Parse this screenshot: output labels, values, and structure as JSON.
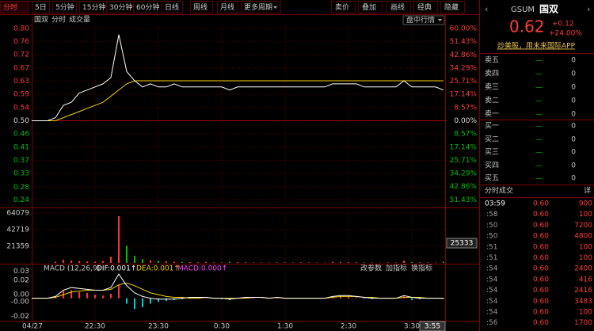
{
  "toolbar": {
    "tabs": [
      "分时",
      "5日",
      "5分钟",
      "15分钟",
      "30分钟",
      "60分钟",
      "日线",
      "周线",
      "月线",
      "更多周期"
    ],
    "tools": [
      "卖价",
      "叠加",
      "画线",
      "经典",
      "隐藏"
    ]
  },
  "stock": {
    "code": "GSUM",
    "name": "国双",
    "price": "0.62",
    "change": "+0.12",
    "change_pct": "+24.00%"
  },
  "promo": "炒美股，用未来国际APP",
  "order_book": {
    "asks": [
      {
        "label": "卖五",
        "price": "—",
        "volume": "0"
      },
      {
        "label": "卖四",
        "price": "—",
        "volume": "0"
      },
      {
        "label": "卖三",
        "price": "—",
        "volume": "0"
      },
      {
        "label": "卖二",
        "price": "—",
        "volume": "0"
      },
      {
        "label": "卖一",
        "price": "—",
        "volume": "0"
      }
    ],
    "bids": [
      {
        "label": "买一",
        "price": "—",
        "volume": "0"
      },
      {
        "label": "买二",
        "price": "—",
        "volume": "0"
      },
      {
        "label": "买三",
        "price": "—",
        "volume": "0"
      },
      {
        "label": "买四",
        "price": "—",
        "volume": "0"
      },
      {
        "label": "买五",
        "price": "—",
        "volume": "0"
      }
    ]
  },
  "trades": {
    "title": "分时成交",
    "detail": "详",
    "rows": [
      {
        "time": "03:59",
        "price": "0.60",
        "volume": "900"
      },
      {
        "time": ":58",
        "price": "0.60",
        "volume": "100"
      },
      {
        "time": ":50",
        "price": "0.60",
        "volume": "7200"
      },
      {
        "time": ":50",
        "price": "0.60",
        "volume": "4800"
      },
      {
        "time": ":51",
        "price": "0.60",
        "volume": "100"
      },
      {
        "time": ":51",
        "price": "0.60",
        "volume": "100"
      },
      {
        "time": ":54",
        "price": "0.60",
        "volume": "2400"
      },
      {
        "time": ":54",
        "price": "0.60",
        "volume": "416"
      },
      {
        "time": ":54",
        "price": "0.60",
        "volume": "2416"
      },
      {
        "time": ":54",
        "price": "0.60",
        "volume": "3483"
      },
      {
        "time": ":54",
        "price": "0.60",
        "volume": "100"
      },
      {
        "time": ":56",
        "price": "0.60",
        "volume": "1700"
      }
    ]
  },
  "chart_data": {
    "type": "line",
    "legend": [
      "国双",
      "分时",
      "成交量"
    ],
    "dropdown": "盘中行情",
    "cursor_time": "3:55",
    "xlim": [
      0,
      52
    ],
    "xticks": [
      {
        "value": 0,
        "label": "04/27"
      },
      {
        "value": 8,
        "label": "22:30"
      },
      {
        "value": 16,
        "label": "23:30"
      },
      {
        "value": 24,
        "label": "0:30"
      },
      {
        "value": 32,
        "label": "1:30"
      },
      {
        "value": 40,
        "label": "2:30"
      },
      {
        "value": 48,
        "label": "3:30"
      }
    ],
    "ylim": [
      0.2,
      0.8
    ],
    "yticks": [
      {
        "value": 0.8,
        "label": "0.80"
      },
      {
        "value": 0.7571,
        "label": "0.76"
      },
      {
        "value": 0.715,
        "label": "0.72"
      },
      {
        "value": 0.6714,
        "label": "0.67"
      },
      {
        "value": 0.6286,
        "label": "0.63"
      },
      {
        "value": 0.5857,
        "label": "0.59"
      },
      {
        "value": 0.5429,
        "label": "0.54"
      },
      {
        "value": 0.5,
        "label": "0.50"
      },
      {
        "value": 0.4571,
        "label": "0.46"
      },
      {
        "value": 0.4143,
        "label": "0.41"
      },
      {
        "value": 0.3714,
        "label": "0.37"
      },
      {
        "value": 0.3286,
        "label": "0.33"
      },
      {
        "value": 0.284,
        "label": "0.28"
      },
      {
        "value": 0.2429,
        "label": "0.24"
      }
    ],
    "y2lim": [
      -60,
      60
    ],
    "y2ticks": [
      {
        "value": 60,
        "label": "60.00%"
      },
      {
        "value": 51.43,
        "label": "51.43%"
      },
      {
        "value": 42.86,
        "label": "42.86%"
      },
      {
        "value": 34.29,
        "label": "34.29%"
      },
      {
        "value": 25.71,
        "label": "25.71%"
      },
      {
        "value": 17.14,
        "label": "17.14%"
      },
      {
        "value": 8.57,
        "label": "8.57%"
      },
      {
        "value": 0,
        "label": "0.00%"
      },
      {
        "value": -8.57,
        "label": "8.57%"
      },
      {
        "value": -17.14,
        "label": "17.14%"
      },
      {
        "value": -25.71,
        "label": "25.71%"
      },
      {
        "value": -34.29,
        "label": "34.29%"
      },
      {
        "value": -42.86,
        "label": "42.86%"
      },
      {
        "value": -51.43,
        "label": "51.43%"
      }
    ],
    "grid": true,
    "price": {
      "color": "#ffffff",
      "values": [
        0.5,
        0.5,
        0.5,
        0.51,
        0.55,
        0.56,
        0.59,
        0.6,
        0.61,
        0.62,
        0.64,
        0.78,
        0.66,
        0.63,
        0.61,
        0.62,
        0.61,
        0.61,
        0.62,
        0.61,
        0.61,
        0.61,
        0.61,
        0.61,
        0.61,
        0.6,
        0.61,
        0.61,
        0.61,
        0.61,
        0.61,
        0.61,
        0.61,
        0.61,
        0.61,
        0.61,
        0.61,
        0.61,
        0.62,
        0.62,
        0.62,
        0.62,
        0.61,
        0.61,
        0.61,
        0.61,
        0.61,
        0.63,
        0.61,
        0.61,
        0.61,
        0.61,
        0.6
      ]
    },
    "avg": {
      "color": "#f0d000",
      "values": [
        0.5,
        0.5,
        0.5,
        0.5,
        0.51,
        0.52,
        0.53,
        0.54,
        0.55,
        0.56,
        0.58,
        0.6,
        0.62,
        0.63,
        0.63,
        0.63,
        0.63,
        0.63,
        0.63,
        0.63,
        0.63,
        0.63,
        0.63,
        0.63,
        0.63,
        0.63,
        0.63,
        0.63,
        0.63,
        0.63,
        0.63,
        0.63,
        0.63,
        0.63,
        0.63,
        0.63,
        0.63,
        0.63,
        0.63,
        0.63,
        0.63,
        0.63,
        0.63,
        0.63,
        0.63,
        0.63,
        0.63,
        0.63,
        0.63,
        0.63,
        0.63,
        0.63,
        0.63
      ]
    },
    "volume": {
      "ylim": [
        0,
        69000
      ],
      "yticks": [
        64079,
        42719,
        21359
      ],
      "marker": 25333,
      "up_color": "#ff3232",
      "down_color": "#00c000",
      "values": [
        200,
        100,
        100,
        1500,
        4000,
        3000,
        2500,
        1800,
        1500,
        2500,
        8000,
        60000,
        22000,
        9000,
        5000,
        3500,
        2500,
        2000,
        1500,
        1200,
        1000,
        800,
        1200,
        700,
        600,
        1500,
        900,
        800,
        700,
        600,
        500,
        700,
        600,
        500,
        800,
        600,
        500,
        400,
        1500,
        1200,
        1000,
        800,
        600,
        500,
        400,
        600,
        500,
        3000,
        1200,
        800,
        600,
        500,
        1500
      ]
    },
    "macd": {
      "title": "MACD (12,26,9)",
      "dif_label": "DIF:0.001↑",
      "dea_label": "DEA:0.001↑",
      "macd_label": "MACD:0.000↑",
      "buttons": [
        "改参数",
        "加指标",
        "换指标"
      ],
      "ylim": [
        -0.025,
        0.035
      ],
      "yticks": [
        0.03,
        0.02,
        {
          "value": 0.004,
          "label": "0.00"
        },
        {
          "value": -0.004,
          "label": "-0.00"
        },
        -0.02
      ],
      "dif": [
        0,
        0,
        0,
        0.002,
        0.009,
        0.012,
        0.011,
        0.01,
        0.009,
        0.009,
        0.012,
        0.027,
        0.014,
        0.006,
        0.002,
        0.0,
        -0.001,
        -0.001,
        -0.001,
        0,
        0.001,
        0.001,
        0.001,
        0,
        0,
        -0.001,
        0,
        0.001,
        0.001,
        0.001,
        0,
        0.001,
        0,
        0,
        0,
        0,
        0,
        0,
        0.002,
        0.003,
        0.003,
        0.002,
        0.001,
        0,
        0,
        0,
        0,
        0.003,
        0.001,
        0,
        0,
        0,
        0
      ],
      "dea": [
        0,
        0,
        0,
        0.001,
        0.004,
        0.007,
        0.008,
        0.009,
        0.009,
        0.009,
        0.01,
        0.015,
        0.017,
        0.014,
        0.01,
        0.006,
        0.004,
        0.002,
        0.001,
        0.001,
        0,
        0,
        0.001,
        0,
        0,
        0,
        0,
        0,
        0.001,
        0.001,
        0,
        0.001,
        0,
        0,
        0,
        0,
        0,
        0,
        0.001,
        0.002,
        0.002,
        0.002,
        0.001,
        0.001,
        0,
        0,
        0,
        0.001,
        0.001,
        0.001,
        0,
        0,
        0
      ],
      "hist": [
        0,
        0,
        0,
        0.002,
        0.008,
        0.009,
        0.007,
        0.006,
        0.004,
        0.003,
        0.005,
        0.015,
        -0.006,
        -0.012,
        -0.01,
        -0.006,
        -0.004,
        -0.003,
        -0.002,
        -0.001,
        0.001,
        0,
        0.001,
        0,
        -0.001,
        -0.002,
        0,
        0.001,
        0.001,
        0,
        0,
        0.001,
        0,
        0,
        0,
        0,
        0,
        0,
        0.002,
        0.003,
        0.002,
        0.001,
        -0.001,
        -0.001,
        0,
        0,
        0,
        0.003,
        -0.002,
        -0.001,
        0,
        0,
        -0.001
      ]
    }
  }
}
